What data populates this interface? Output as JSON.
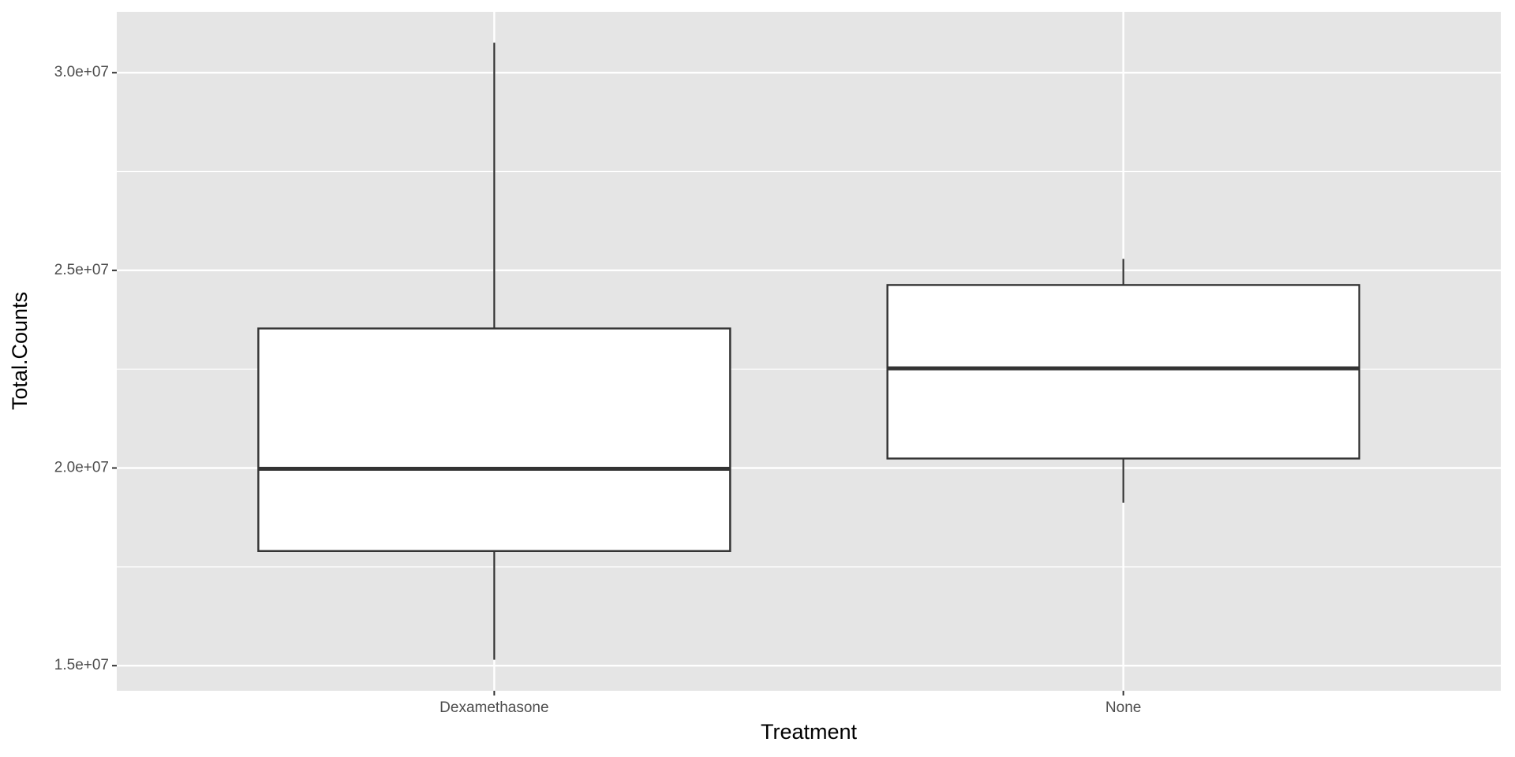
{
  "chart_data": {
    "type": "boxplot",
    "x_label": "Treatment",
    "y_label": "Total.Counts",
    "categories": [
      "Dexamethasone",
      "None"
    ],
    "whisker_low": [
      15150000,
      19120000
    ],
    "q1": [
      17900000,
      20240000
    ],
    "median": [
      19980000,
      22520000
    ],
    "q3": [
      23530000,
      24630000
    ],
    "whisker_high": [
      30760000,
      25290000
    ],
    "box_color": "#ffffff",
    "line_color": "#333333",
    "ylim": [
      14365000,
      31540000
    ],
    "yticks": [
      {
        "value": 15000000,
        "label": "1.5e+07"
      },
      {
        "value": 20000000,
        "label": "2.0e+07"
      },
      {
        "value": 25000000,
        "label": "2.5e+07"
      },
      {
        "value": 30000000,
        "label": "3.0e+07"
      }
    ],
    "grid": true
  }
}
